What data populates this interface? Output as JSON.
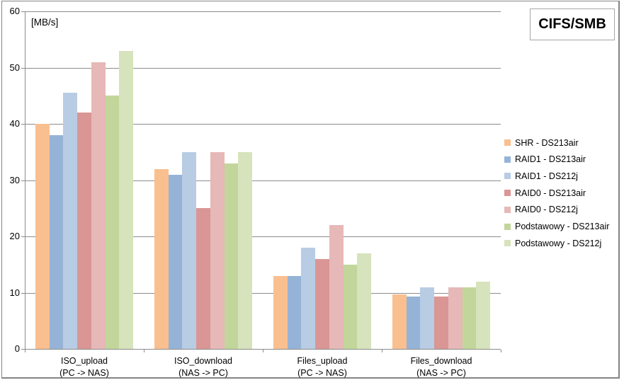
{
  "title_box": {
    "label": "CIFS/SMB"
  },
  "chart_data": {
    "type": "bar",
    "title": "CIFS/SMB",
    "ylabel": "[MB/s]",
    "xlabel": "",
    "ylim": [
      0,
      60
    ],
    "yticks": [
      0,
      10,
      20,
      30,
      40,
      50,
      60
    ],
    "grid": true,
    "legend_position": "right",
    "categories": [
      {
        "line1": "ISO_upload",
        "line2": "(PC -> NAS)"
      },
      {
        "line1": "ISO_download",
        "line2": "(NAS -> PC)"
      },
      {
        "line1": "Files_upload",
        "line2": "(PC -> NAS)"
      },
      {
        "line1": "Files_download",
        "line2": "(NAS -> PC)"
      }
    ],
    "series": [
      {
        "name": "SHR - DS213air",
        "color": "#FABF8F",
        "values": [
          40,
          32,
          13,
          9.7
        ]
      },
      {
        "name": "RAID1 - DS213air",
        "color": "#95B3D7",
        "values": [
          38,
          31,
          13,
          9.3
        ]
      },
      {
        "name": "RAID1 - DS212j",
        "color": "#B8CCE4",
        "values": [
          45.5,
          35,
          18,
          11
        ]
      },
      {
        "name": "RAID0 - DS213air",
        "color": "#D99694",
        "values": [
          42,
          25,
          16,
          9.3
        ]
      },
      {
        "name": "RAID0 - DS212j",
        "color": "#E6B8B7",
        "values": [
          51,
          35,
          22,
          11
        ]
      },
      {
        "name": "Podstawowy - DS213air",
        "color": "#C2D69B",
        "values": [
          45,
          33,
          15,
          11
        ]
      },
      {
        "name": "Podstawowy - DS212j",
        "color": "#D6E3BC",
        "values": [
          53,
          35,
          17,
          12
        ]
      }
    ],
    "colors": {
      "gridline": "#8c8c8c",
      "axis": "#8c8c8c",
      "frame_border": "#848484",
      "title_border": "#a6a6a6",
      "text": "#000000",
      "background": "#ffffff"
    }
  }
}
